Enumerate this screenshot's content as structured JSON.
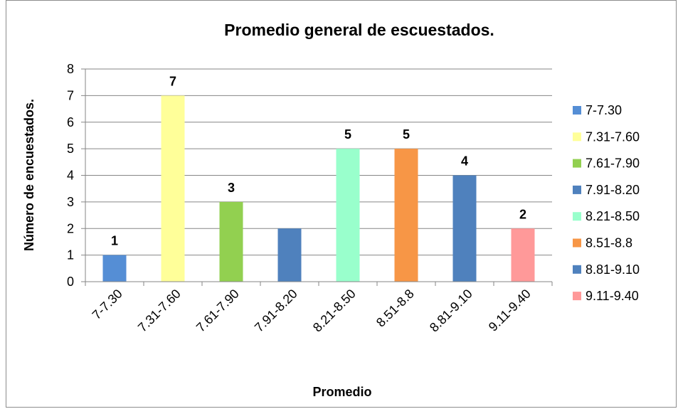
{
  "chart_data": {
    "type": "bar",
    "title": "Promedio general de escuestados.",
    "xlabel": "Promedio",
    "ylabel": "Número de encuestados.",
    "ylim": [
      0,
      8
    ],
    "yticks": [
      0,
      1,
      2,
      3,
      4,
      5,
      6,
      7,
      8
    ],
    "grid": true,
    "legend_position": "right",
    "categories": [
      "7-7.30",
      "7.31-7.60",
      "7.61-7.90",
      "7.91-8.20",
      "8.21-8.50",
      "8.51-8.8",
      "8.81-9.10",
      "9.11-9.40"
    ],
    "values": [
      1,
      7,
      3,
      2,
      5,
      5,
      4,
      2
    ],
    "colors": [
      "#558ed5",
      "#ffff99",
      "#92d050",
      "#4f81bd",
      "#99ffcc",
      "#f79646",
      "#4f81bd",
      "#ff9999"
    ],
    "data_labels": [
      "1",
      "7",
      "3",
      "",
      "5",
      "5",
      "4",
      "2"
    ]
  }
}
